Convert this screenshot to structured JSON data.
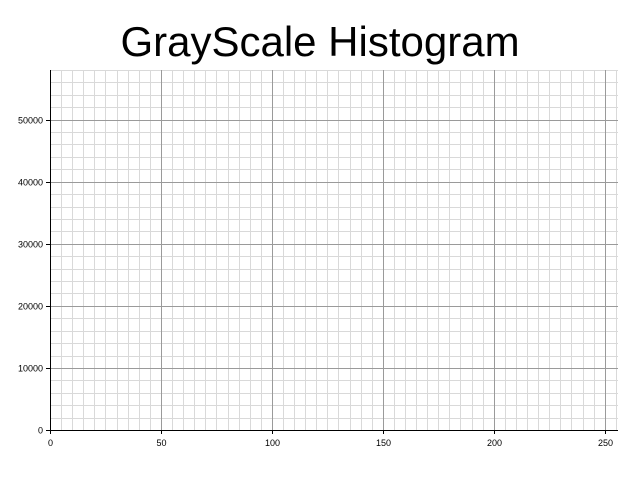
{
  "chart_data": {
    "type": "bar",
    "title": "GrayScale Histogram",
    "xlabel": "",
    "ylabel": "",
    "xlim": [
      0,
      256
    ],
    "ylim": [
      0,
      58000
    ],
    "x_ticks": [
      0,
      50,
      100,
      150,
      200,
      250
    ],
    "y_ticks": [
      0,
      10000,
      20000,
      30000,
      40000,
      50000
    ],
    "x_minor_step": 5,
    "y_minor_step": 2000,
    "grid": true,
    "legend": "none",
    "series": []
  },
  "colors": {
    "major_grid": "#9a9a9a",
    "minor_grid": "#d9d9d9",
    "axis": "#000000"
  }
}
